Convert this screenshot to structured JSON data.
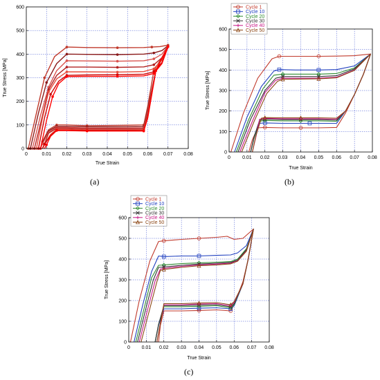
{
  "chart_data": [
    {
      "panel": "(a)",
      "type": "line",
      "xlabel": "True Strain",
      "ylabel": "True Stress [MPa]",
      "xlim": [
        0,
        0.08
      ],
      "ylim": [
        0,
        600
      ],
      "xticks": [
        "0",
        "0.01",
        "0.02",
        "0.03",
        "0.04",
        "0.05",
        "0.06",
        "0.07",
        "0.08"
      ],
      "yticks": [
        "0",
        "100",
        "200",
        "300",
        "400",
        "500",
        "600"
      ],
      "grid": true,
      "legend": null,
      "series": [
        {
          "color": "#c0392b",
          "x": [
            0.001,
            0.005,
            0.009,
            0.014,
            0.02,
            0.03,
            0.045,
            0.058,
            0.062,
            0.066,
            0.07,
            0.068,
            0.063,
            0.06,
            0.058,
            0.045,
            0.03,
            0.02,
            0.015,
            0.011,
            0.008,
            0.007
          ],
          "y": [
            0,
            150,
            300,
            390,
            430,
            428,
            427,
            428,
            430,
            432,
            438,
            400,
            330,
            180,
            100,
            98,
            97,
            100,
            100,
            80,
            30,
            0
          ]
        },
        {
          "color": "#8b1a1a",
          "x": [
            0.002,
            0.006,
            0.01,
            0.015,
            0.02,
            0.03,
            0.045,
            0.058,
            0.063,
            0.067,
            0.07,
            0.068,
            0.064,
            0.06,
            0.058,
            0.045,
            0.03,
            0.02,
            0.015,
            0.011,
            0.008,
            0.007
          ],
          "y": [
            0,
            150,
            280,
            360,
            400,
            399,
            398,
            400,
            405,
            415,
            436,
            400,
            330,
            170,
            93,
            92,
            92,
            94,
            94,
            75,
            25,
            0
          ]
        },
        {
          "color": "#d9534f",
          "x": [
            0.003,
            0.007,
            0.011,
            0.015,
            0.02,
            0.03,
            0.045,
            0.058,
            0.063,
            0.067,
            0.07,
            0.068,
            0.064,
            0.06,
            0.058,
            0.045,
            0.03,
            0.02,
            0.015,
            0.011,
            0.008,
            0.007
          ],
          "y": [
            0,
            140,
            260,
            330,
            372,
            371,
            370,
            372,
            380,
            400,
            435,
            400,
            330,
            160,
            88,
            87,
            87,
            90,
            90,
            70,
            20,
            0
          ]
        },
        {
          "color": "#b22222",
          "x": [
            0.004,
            0.008,
            0.011,
            0.015,
            0.02,
            0.03,
            0.045,
            0.058,
            0.063,
            0.067,
            0.07,
            0.068,
            0.064,
            0.06,
            0.058,
            0.045,
            0.03,
            0.02,
            0.015,
            0.011,
            0.009,
            0.008
          ],
          "y": [
            0,
            140,
            250,
            310,
            345,
            345,
            344,
            346,
            355,
            385,
            434,
            400,
            330,
            150,
            84,
            83,
            83,
            86,
            86,
            65,
            20,
            0
          ]
        },
        {
          "color": "#e74c3c",
          "x": [
            0.005,
            0.008,
            0.011,
            0.015,
            0.02,
            0.03,
            0.045,
            0.058,
            0.063,
            0.067,
            0.07,
            0.068,
            0.064,
            0.06,
            0.058,
            0.045,
            0.03,
            0.02,
            0.015,
            0.012,
            0.009,
            0.008
          ],
          "y": [
            0,
            130,
            240,
            295,
            325,
            325,
            324,
            326,
            338,
            375,
            433,
            400,
            330,
            140,
            80,
            79,
            79,
            82,
            82,
            60,
            20,
            0
          ]
        },
        {
          "color": "#cc0000",
          "x": [
            0.006,
            0.009,
            0.012,
            0.016,
            0.02,
            0.03,
            0.045,
            0.058,
            0.063,
            0.067,
            0.07,
            0.068,
            0.064,
            0.06,
            0.058,
            0.045,
            0.03,
            0.02,
            0.015,
            0.012,
            0.009,
            0.008
          ],
          "y": [
            0,
            130,
            230,
            285,
            310,
            312,
            313,
            315,
            325,
            365,
            432,
            400,
            330,
            135,
            76,
            76,
            76,
            78,
            78,
            55,
            18,
            0
          ]
        },
        {
          "color": "#ff0000",
          "x": [
            0.007,
            0.01,
            0.013,
            0.016,
            0.02,
            0.03,
            0.045,
            0.058,
            0.063,
            0.067,
            0.07,
            0.068,
            0.064,
            0.06,
            0.058,
            0.045,
            0.03,
            0.02,
            0.015,
            0.012,
            0.01,
            0.009
          ],
          "y": [
            0,
            120,
            220,
            275,
            305,
            306,
            306,
            308,
            318,
            360,
            431,
            400,
            330,
            130,
            74,
            74,
            74,
            76,
            76,
            52,
            16,
            0
          ]
        }
      ]
    },
    {
      "panel": "(b)",
      "type": "line",
      "xlabel": "True Strain",
      "ylabel": "True Stress [MPa]",
      "xlim": [
        0,
        0.08
      ],
      "ylim": [
        0,
        600
      ],
      "xticks": [
        "0",
        "0.01",
        "0.02",
        "0.03",
        "0.04",
        "0.05",
        "0.06",
        "0.07",
        "0.08"
      ],
      "yticks": [
        "0",
        "100",
        "200",
        "300",
        "400",
        "500",
        "600"
      ],
      "grid": true,
      "legend": "top-left",
      "series": [
        {
          "name": "Cycle 1",
          "color": "#c0392b",
          "marker": "circle",
          "x": [
            0.001,
            0.008,
            0.016,
            0.024,
            0.028,
            0.04,
            0.05,
            0.06,
            0.07,
            0.079,
            0.075,
            0.07,
            0.065,
            0.06,
            0.05,
            0.04,
            0.03,
            0.02,
            0.016,
            0.013,
            0.011
          ],
          "y": [
            0,
            190,
            360,
            455,
            467,
            467,
            467,
            468,
            470,
            478,
            380,
            280,
            190,
            120,
            118,
            118,
            118,
            120,
            118,
            60,
            0
          ]
        },
        {
          "name": "Cycle 10",
          "color": "#1f3fbf",
          "marker": "square",
          "x": [
            0.003,
            0.01,
            0.018,
            0.025,
            0.028,
            0.037,
            0.05,
            0.06,
            0.07,
            0.079,
            0.075,
            0.07,
            0.065,
            0.06,
            0.05,
            0.045,
            0.03,
            0.02,
            0.017,
            0.014,
            0.012
          ],
          "y": [
            0,
            170,
            320,
            395,
            402,
            400,
            400,
            402,
            420,
            478,
            380,
            280,
            200,
            140,
            140,
            140,
            140,
            142,
            140,
            70,
            0
          ]
        },
        {
          "name": "Cycle 20",
          "color": "#2e8b2e",
          "marker": "diamond",
          "x": [
            0.004,
            0.011,
            0.019,
            0.025,
            0.03,
            0.04,
            0.05,
            0.06,
            0.07,
            0.079,
            0.075,
            0.07,
            0.065,
            0.06,
            0.05,
            0.04,
            0.03,
            0.02,
            0.017,
            0.014,
            0.012
          ],
          "y": [
            0,
            160,
            310,
            375,
            380,
            380,
            380,
            383,
            410,
            478,
            380,
            280,
            200,
            150,
            152,
            152,
            152,
            154,
            150,
            70,
            0
          ]
        },
        {
          "name": "Cycle 30",
          "color": "#333333",
          "marker": "x",
          "x": [
            0.005,
            0.012,
            0.02,
            0.026,
            0.03,
            0.04,
            0.05,
            0.06,
            0.07,
            0.079,
            0.075,
            0.07,
            0.065,
            0.06,
            0.05,
            0.04,
            0.03,
            0.02,
            0.017,
            0.014,
            0.012
          ],
          "y": [
            0,
            160,
            300,
            360,
            368,
            368,
            368,
            372,
            405,
            478,
            380,
            280,
            200,
            155,
            158,
            158,
            158,
            160,
            155,
            75,
            0
          ]
        },
        {
          "name": "Cycle 40",
          "color": "#c71585",
          "marker": "plus",
          "x": [
            0.006,
            0.013,
            0.02,
            0.026,
            0.03,
            0.04,
            0.05,
            0.06,
            0.07,
            0.079,
            0.075,
            0.07,
            0.065,
            0.06,
            0.05,
            0.04,
            0.03,
            0.02,
            0.017,
            0.015,
            0.013
          ],
          "y": [
            0,
            150,
            290,
            350,
            360,
            360,
            360,
            365,
            400,
            478,
            380,
            280,
            200,
            160,
            162,
            162,
            162,
            164,
            160,
            75,
            0
          ]
        },
        {
          "name": "Cycle 50",
          "color": "#8b4513",
          "marker": "triangle",
          "x": [
            0.007,
            0.014,
            0.021,
            0.027,
            0.03,
            0.04,
            0.05,
            0.06,
            0.07,
            0.079,
            0.075,
            0.07,
            0.065,
            0.06,
            0.05,
            0.04,
            0.03,
            0.02,
            0.018,
            0.015,
            0.013
          ],
          "y": [
            0,
            150,
            285,
            345,
            355,
            356,
            357,
            362,
            398,
            478,
            380,
            280,
            200,
            165,
            167,
            167,
            167,
            168,
            165,
            80,
            0
          ]
        }
      ]
    },
    {
      "panel": "(c)",
      "type": "line",
      "xlabel": "True Strain",
      "ylabel": "True Stress [MPa]",
      "xlim": [
        0,
        0.08
      ],
      "ylim": [
        0,
        600
      ],
      "xticks": [
        "0",
        "0.01",
        "0.02",
        "0.03",
        "0.04",
        "0.05",
        "0.06",
        "0.07",
        "0.08"
      ],
      "yticks": [
        "0",
        "100",
        "200",
        "300",
        "400",
        "500",
        "600"
      ],
      "grid": true,
      "legend": "top-left",
      "series": [
        {
          "name": "Cycle 1",
          "color": "#c0392b",
          "marker": "circle",
          "x": [
            0.001,
            0.006,
            0.012,
            0.017,
            0.02,
            0.03,
            0.04,
            0.05,
            0.056,
            0.06,
            0.065,
            0.071,
            0.068,
            0.065,
            0.06,
            0.058,
            0.05,
            0.04,
            0.03,
            0.02,
            0.018,
            0.017
          ],
          "y": [
            0,
            200,
            390,
            485,
            488,
            495,
            500,
            505,
            510,
            495,
            500,
            545,
            400,
            290,
            180,
            150,
            155,
            152,
            150,
            150,
            80,
            0
          ]
        },
        {
          "name": "Cycle 10",
          "color": "#1f3fbf",
          "marker": "square",
          "x": [
            0.003,
            0.008,
            0.013,
            0.017,
            0.02,
            0.03,
            0.04,
            0.05,
            0.058,
            0.062,
            0.067,
            0.071,
            0.068,
            0.065,
            0.06,
            0.058,
            0.05,
            0.04,
            0.03,
            0.02,
            0.017,
            0.015
          ],
          "y": [
            0,
            180,
            340,
            415,
            412,
            415,
            415,
            418,
            420,
            430,
            465,
            545,
            400,
            280,
            175,
            160,
            165,
            163,
            160,
            160,
            80,
            0
          ]
        },
        {
          "name": "Cycle 20",
          "color": "#2e8b2e",
          "marker": "diamond",
          "x": [
            0.004,
            0.009,
            0.013,
            0.017,
            0.02,
            0.03,
            0.04,
            0.05,
            0.058,
            0.062,
            0.067,
            0.071,
            0.068,
            0.065,
            0.06,
            0.058,
            0.05,
            0.04,
            0.03,
            0.02,
            0.017,
            0.015
          ],
          "y": [
            0,
            170,
            310,
            370,
            372,
            378,
            382,
            385,
            388,
            400,
            450,
            545,
            400,
            280,
            180,
            165,
            175,
            172,
            170,
            170,
            85,
            0
          ]
        },
        {
          "name": "Cycle 30",
          "color": "#333333",
          "marker": "x",
          "x": [
            0.005,
            0.01,
            0.014,
            0.017,
            0.02,
            0.03,
            0.04,
            0.05,
            0.058,
            0.062,
            0.067,
            0.071,
            0.068,
            0.065,
            0.06,
            0.058,
            0.05,
            0.04,
            0.03,
            0.02,
            0.017,
            0.015
          ],
          "y": [
            0,
            170,
            300,
            360,
            362,
            370,
            376,
            380,
            384,
            395,
            445,
            545,
            400,
            280,
            185,
            170,
            180,
            178,
            175,
            175,
            85,
            0
          ]
        },
        {
          "name": "Cycle 40",
          "color": "#c71585",
          "marker": "plus",
          "x": [
            0.006,
            0.011,
            0.015,
            0.018,
            0.02,
            0.03,
            0.04,
            0.05,
            0.058,
            0.062,
            0.067,
            0.071,
            0.068,
            0.065,
            0.06,
            0.058,
            0.05,
            0.04,
            0.03,
            0.02,
            0.018,
            0.016
          ],
          "y": [
            0,
            165,
            295,
            352,
            355,
            365,
            372,
            376,
            380,
            392,
            440,
            545,
            400,
            280,
            190,
            175,
            185,
            183,
            180,
            180,
            90,
            0
          ]
        },
        {
          "name": "Cycle 50",
          "color": "#8b4513",
          "marker": "triangle",
          "x": [
            0.007,
            0.012,
            0.016,
            0.018,
            0.02,
            0.03,
            0.04,
            0.05,
            0.058,
            0.062,
            0.067,
            0.071,
            0.068,
            0.065,
            0.06,
            0.058,
            0.05,
            0.04,
            0.03,
            0.02,
            0.018,
            0.016
          ],
          "y": [
            0,
            160,
            290,
            345,
            350,
            360,
            368,
            372,
            377,
            390,
            438,
            545,
            400,
            280,
            195,
            180,
            190,
            188,
            185,
            185,
            90,
            0
          ]
        }
      ]
    }
  ]
}
